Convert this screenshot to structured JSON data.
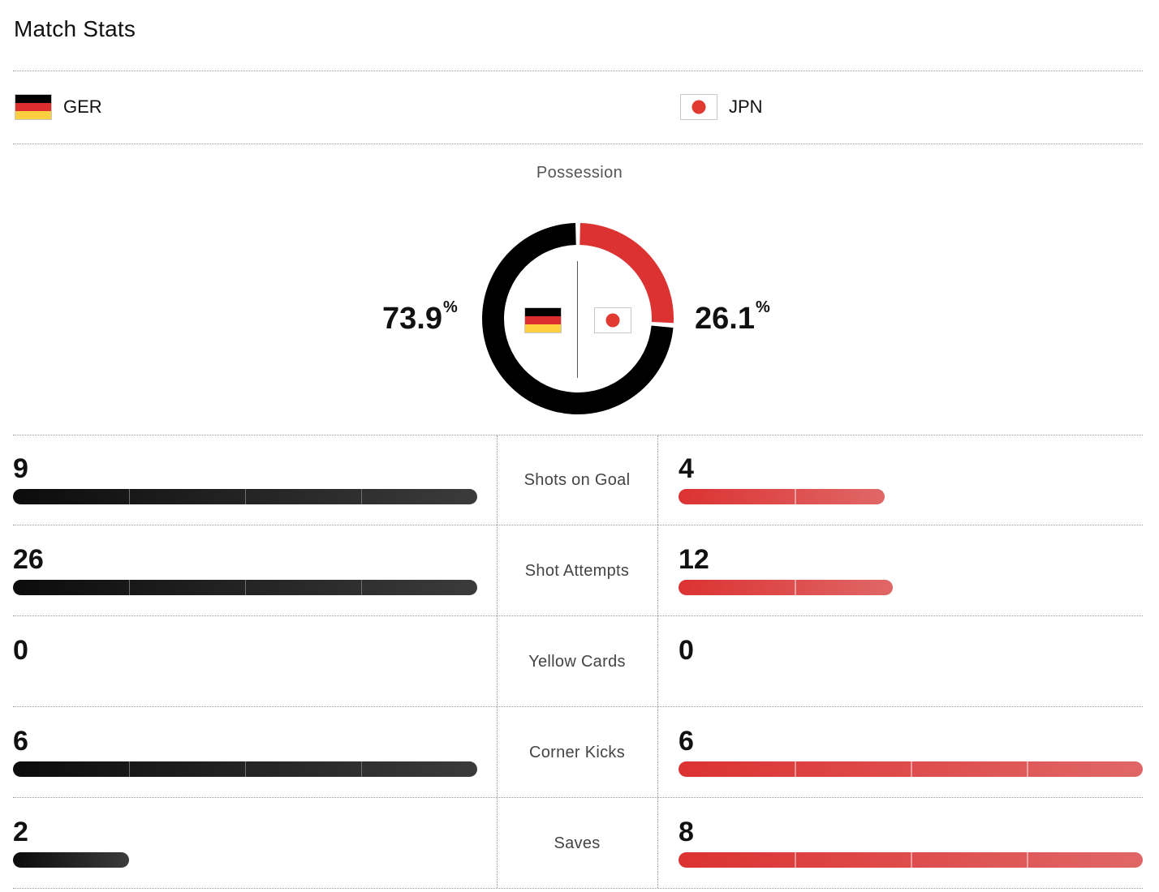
{
  "page": {
    "title": "Match Stats"
  },
  "teams": {
    "home": {
      "abbr": "GER",
      "flag": "germany-flag",
      "color": "#111111"
    },
    "away": {
      "abbr": "JPN",
      "flag": "japan-flag",
      "color": "#dc3232"
    }
  },
  "possession": {
    "label": "Possession",
    "home_pct": 73.9,
    "away_pct": 26.1,
    "home_pct_text": "73.9",
    "away_pct_text": "26.1",
    "unit": "%"
  },
  "stats": [
    {
      "label": "Shots on Goal",
      "home": 9,
      "away": 4,
      "home_text": "9",
      "away_text": "4"
    },
    {
      "label": "Shot Attempts",
      "home": 26,
      "away": 12,
      "home_text": "26",
      "away_text": "12"
    },
    {
      "label": "Yellow Cards",
      "home": 0,
      "away": 0,
      "home_text": "0",
      "away_text": "0"
    },
    {
      "label": "Corner Kicks",
      "home": 6,
      "away": 6,
      "home_text": "6",
      "away_text": "6"
    },
    {
      "label": "Saves",
      "home": 2,
      "away": 8,
      "home_text": "2",
      "away_text": "8"
    }
  ],
  "chart_data": {
    "type": "pie",
    "title": "Possession",
    "categories": [
      "GER",
      "JPN"
    ],
    "values": [
      73.9,
      26.1
    ]
  }
}
